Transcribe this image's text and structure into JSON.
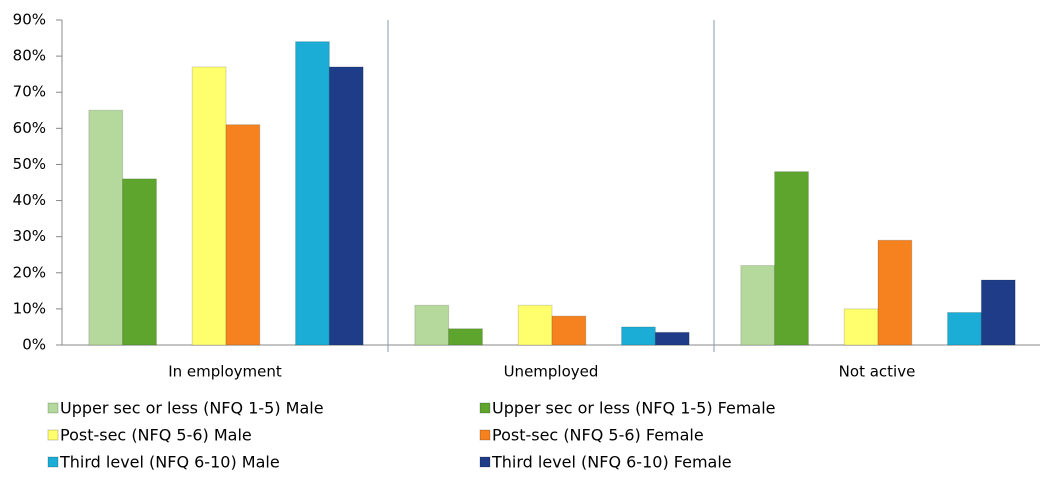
{
  "chart_data": {
    "type": "bar",
    "categories": [
      "In employment",
      "Unemployed",
      "Not active"
    ],
    "series": [
      {
        "name": "Upper sec or less (NFQ 1-5) Male",
        "color": "#b5d99c",
        "values": [
          65,
          11,
          22
        ]
      },
      {
        "name": "Upper sec or less (NFQ 1-5) Female",
        "color": "#5ea52e",
        "values": [
          46,
          4.5,
          48
        ]
      },
      {
        "name": "Post-sec (NFQ 5-6) Male",
        "color": "#ffff6e",
        "values": [
          77,
          11,
          10
        ]
      },
      {
        "name": "Post-sec (NFQ 5-6) Female",
        "color": "#f5821f",
        "values": [
          61,
          8,
          29
        ]
      },
      {
        "name": "Third level (NFQ 6-10) Male",
        "color": "#1badd5",
        "values": [
          84,
          5,
          9
        ]
      },
      {
        "name": "Third level (NFQ 6-10) Female",
        "color": "#1e3c88",
        "values": [
          77,
          3.5,
          18
        ]
      }
    ],
    "ylim": [
      0,
      90
    ],
    "yticks": [
      {
        "value": 0,
        "label": "0%"
      },
      {
        "value": 10,
        "label": "10%"
      },
      {
        "value": 20,
        "label": "20%"
      },
      {
        "value": 30,
        "label": "30%"
      },
      {
        "value": 40,
        "label": "40%"
      },
      {
        "value": 50,
        "label": "50%"
      },
      {
        "value": 60,
        "label": "60%"
      },
      {
        "value": 70,
        "label": "70%"
      },
      {
        "value": 80,
        "label": "80%"
      },
      {
        "value": 90,
        "label": "90%"
      }
    ],
    "grid": false
  }
}
